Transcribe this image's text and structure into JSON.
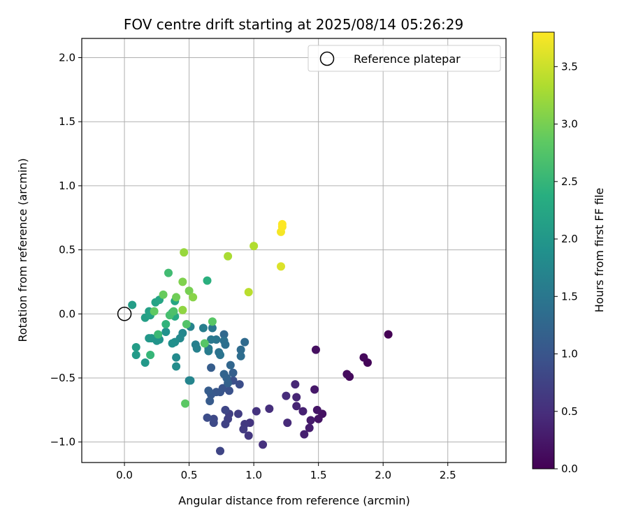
{
  "chart_data": {
    "type": "scatter",
    "title": "FOV centre drift starting at 2025/08/14 05:26:29",
    "xlabel": "Angular distance from reference (arcmin)",
    "ylabel": "Rotation from reference (arcmin)",
    "xlim": [
      -0.33,
      2.95
    ],
    "ylim": [
      -1.16,
      2.15
    ],
    "xticks": [
      0.0,
      0.5,
      1.0,
      1.5,
      2.0,
      2.5
    ],
    "xtick_labels": [
      "0.0",
      "0.5",
      "1.0",
      "1.5",
      "2.0",
      "2.5"
    ],
    "yticks": [
      -1.0,
      -0.5,
      0.0,
      0.5,
      1.0,
      1.5,
      2.0
    ],
    "ytick_labels": [
      "−1.0",
      "−0.5",
      "0.0",
      "0.5",
      "1.0",
      "1.5",
      "2.0"
    ],
    "grid": true,
    "legend": {
      "position": "top-right",
      "entries": [
        "Reference platepar"
      ]
    },
    "reference_point": {
      "x": 0.0,
      "y": 0.0,
      "marker": "open-circle"
    },
    "colorbar": {
      "label": "Hours from first FF file",
      "range": [
        0.0,
        3.8
      ],
      "ticks": [
        0.0,
        0.5,
        1.0,
        1.5,
        2.0,
        2.5,
        3.0,
        3.5
      ],
      "tick_labels": [
        "0.0",
        "0.5",
        "1.0",
        "1.5",
        "2.0",
        "2.5",
        "3.0",
        "3.5"
      ],
      "colormap": "viridis"
    },
    "points": [
      [
        2.04,
        -0.16,
        0.0
      ],
      [
        1.88,
        -0.38,
        0.05
      ],
      [
        1.85,
        -0.34,
        0.08
      ],
      [
        1.74,
        -0.49,
        0.1
      ],
      [
        1.72,
        -0.47,
        0.12
      ],
      [
        1.48,
        -0.28,
        0.15
      ],
      [
        1.53,
        -0.78,
        0.18
      ],
      [
        1.5,
        -0.82,
        0.2
      ],
      [
        1.49,
        -0.75,
        0.22
      ],
      [
        1.47,
        -0.59,
        0.25
      ],
      [
        1.44,
        -0.83,
        0.28
      ],
      [
        1.43,
        -0.89,
        0.3
      ],
      [
        1.39,
        -0.94,
        0.33
      ],
      [
        1.38,
        -0.76,
        0.35
      ],
      [
        1.33,
        -0.72,
        0.38
      ],
      [
        1.33,
        -0.65,
        0.4
      ],
      [
        1.32,
        -0.55,
        0.42
      ],
      [
        1.26,
        -0.85,
        0.45
      ],
      [
        1.25,
        -0.64,
        0.48
      ],
      [
        1.12,
        -0.74,
        0.5
      ],
      [
        1.07,
        -1.02,
        0.52
      ],
      [
        1.02,
        -0.76,
        0.55
      ],
      [
        0.97,
        -0.85,
        0.58
      ],
      [
        0.96,
        -0.95,
        0.6
      ],
      [
        0.93,
        -0.86,
        0.63
      ],
      [
        0.92,
        -0.9,
        0.65
      ],
      [
        0.88,
        -0.78,
        0.68
      ],
      [
        0.81,
        -0.78,
        0.7
      ],
      [
        0.8,
        -0.82,
        0.72
      ],
      [
        0.78,
        -0.86,
        0.75
      ],
      [
        0.74,
        -1.07,
        0.78
      ],
      [
        0.78,
        -0.75,
        0.8
      ],
      [
        0.69,
        -0.82,
        0.82
      ],
      [
        0.69,
        -0.85,
        0.85
      ],
      [
        0.64,
        -0.81,
        0.88
      ],
      [
        0.89,
        -0.55,
        0.9
      ],
      [
        0.84,
        -0.52,
        0.92
      ],
      [
        0.81,
        -0.6,
        0.95
      ],
      [
        0.76,
        -0.58,
        0.98
      ],
      [
        0.74,
        -0.61,
        1.0
      ],
      [
        0.71,
        -0.61,
        1.02
      ],
      [
        0.67,
        -0.63,
        1.05
      ],
      [
        0.66,
        -0.68,
        1.08
      ],
      [
        0.65,
        -0.6,
        1.1
      ],
      [
        0.67,
        -0.42,
        1.12
      ],
      [
        0.84,
        -0.46,
        1.15
      ],
      [
        0.8,
        -0.54,
        1.18
      ],
      [
        0.79,
        -0.5,
        1.2
      ],
      [
        0.77,
        -0.47,
        1.22
      ],
      [
        0.82,
        -0.4,
        1.25
      ],
      [
        0.77,
        -0.16,
        1.28
      ],
      [
        0.93,
        -0.22,
        1.3
      ],
      [
        0.9,
        -0.28,
        1.32
      ],
      [
        0.9,
        -0.33,
        1.35
      ],
      [
        0.78,
        -0.24,
        1.38
      ],
      [
        0.77,
        -0.21,
        1.4
      ],
      [
        0.73,
        -0.3,
        1.42
      ],
      [
        0.74,
        -0.32,
        1.45
      ],
      [
        0.71,
        -0.2,
        1.48
      ],
      [
        0.68,
        -0.11,
        1.5
      ],
      [
        0.67,
        -0.2,
        1.52
      ],
      [
        0.65,
        -0.27,
        1.55
      ],
      [
        0.65,
        -0.29,
        1.58
      ],
      [
        0.61,
        -0.11,
        1.6
      ],
      [
        0.55,
        -0.24,
        1.62
      ],
      [
        0.56,
        -0.27,
        1.65
      ],
      [
        0.51,
        -0.1,
        1.68
      ],
      [
        0.5,
        -0.52,
        1.7
      ],
      [
        0.51,
        -0.52,
        1.72
      ],
      [
        0.45,
        -0.15,
        1.75
      ],
      [
        0.43,
        -0.19,
        1.78
      ],
      [
        0.4,
        -0.34,
        1.8
      ],
      [
        0.4,
        -0.41,
        1.82
      ],
      [
        0.39,
        -0.22,
        1.85
      ],
      [
        0.37,
        -0.23,
        1.88
      ],
      [
        0.32,
        -0.14,
        1.9
      ],
      [
        0.27,
        -0.2,
        1.92
      ],
      [
        0.25,
        -0.21,
        1.95
      ],
      [
        0.21,
        -0.19,
        1.98
      ],
      [
        0.19,
        -0.19,
        2.0
      ],
      [
        0.16,
        -0.38,
        2.02
      ],
      [
        0.09,
        -0.32,
        2.05
      ],
      [
        0.09,
        -0.26,
        2.08
      ],
      [
        0.06,
        0.07,
        2.1
      ],
      [
        0.16,
        -0.03,
        2.12
      ],
      [
        0.19,
        0.02,
        2.15
      ],
      [
        0.2,
        -0.01,
        2.18
      ],
      [
        0.24,
        0.09,
        2.2
      ],
      [
        0.27,
        0.11,
        2.22
      ],
      [
        0.39,
        0.1,
        2.25
      ],
      [
        0.37,
        0.01,
        2.28
      ],
      [
        0.39,
        -0.02,
        2.3
      ],
      [
        0.64,
        0.26,
        2.4
      ],
      [
        0.32,
        -0.08,
        2.45
      ],
      [
        0.2,
        -0.32,
        2.5
      ],
      [
        0.26,
        -0.16,
        2.55
      ],
      [
        0.34,
        0.32,
        2.6
      ],
      [
        0.35,
        -0.01,
        2.65
      ],
      [
        0.38,
        0.02,
        2.7
      ],
      [
        0.48,
        -0.08,
        2.75
      ],
      [
        0.62,
        -0.23,
        2.78
      ],
      [
        0.68,
        -0.06,
        2.8
      ],
      [
        0.47,
        -0.7,
        2.82
      ],
      [
        0.23,
        0.02,
        2.85
      ],
      [
        0.3,
        0.15,
        2.9
      ],
      [
        0.4,
        0.13,
        2.95
      ],
      [
        0.5,
        0.18,
        3.0
      ],
      [
        0.45,
        0.25,
        3.05
      ],
      [
        0.53,
        0.13,
        3.1
      ],
      [
        0.45,
        0.03,
        3.15
      ],
      [
        0.46,
        0.48,
        3.2
      ],
      [
        0.8,
        0.45,
        3.3
      ],
      [
        1.0,
        0.53,
        3.35
      ],
      [
        0.96,
        0.17,
        3.4
      ],
      [
        1.21,
        0.37,
        3.6
      ],
      [
        1.21,
        0.64,
        3.75
      ],
      [
        1.22,
        0.68,
        3.78
      ],
      [
        1.22,
        0.7,
        3.8
      ]
    ]
  }
}
